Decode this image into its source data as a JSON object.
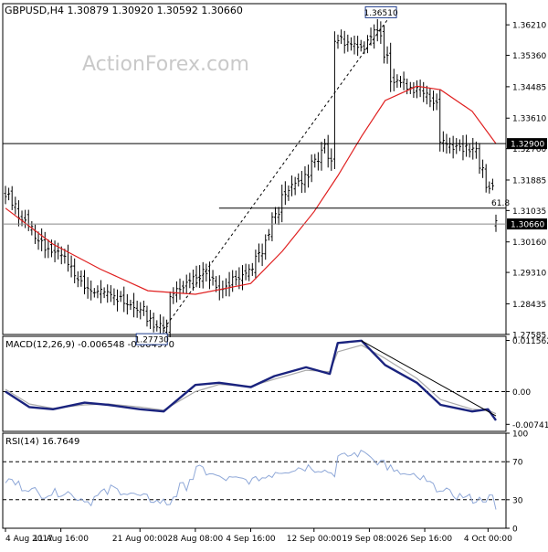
{
  "chart_data": [
    {
      "panel": "price",
      "type": "ohlc",
      "header": {
        "symbol_label": "GBPUSD,H4",
        "open": "1.30879",
        "high": "1.30920",
        "low": "1.30592",
        "close": "1.30660"
      },
      "watermark": "ActionForex.com",
      "ylim": [
        1.2758,
        1.368
      ],
      "y_ticks": [
        "1.36210",
        "1.35360",
        "1.34485",
        "1.33610",
        "1.32760",
        "1.31885",
        "1.31035",
        "1.30160",
        "1.29310",
        "1.28435",
        "1.27585"
      ],
      "y_tick_values": [
        1.3621,
        1.3536,
        1.34485,
        1.3361,
        1.3276,
        1.31885,
        1.31035,
        1.3016,
        1.2931,
        1.28435,
        1.27585
      ],
      "price_path": [
        {
          "date": "2017-08-04",
          "value": 1.315
        },
        {
          "date": "2017-08-07",
          "value": 1.305
        },
        {
          "date": "2017-08-09",
          "value": 1.3
        },
        {
          "date": "2017-08-11",
          "value": 1.2985
        },
        {
          "date": "2017-08-14",
          "value": 1.288
        },
        {
          "date": "2017-08-16",
          "value": 1.2875
        },
        {
          "date": "2017-08-18",
          "value": 1.286
        },
        {
          "date": "2017-08-21",
          "value": 1.283
        },
        {
          "date": "2017-08-23",
          "value": 1.278
        },
        {
          "date": "2017-08-24",
          "value": 1.2773
        },
        {
          "date": "2017-08-25",
          "value": 1.287
        },
        {
          "date": "2017-08-29",
          "value": 1.293
        },
        {
          "date": "2017-08-31",
          "value": 1.289
        },
        {
          "date": "2017-09-04",
          "value": 1.294
        },
        {
          "date": "2017-09-06",
          "value": 1.303
        },
        {
          "date": "2017-09-08",
          "value": 1.315
        },
        {
          "date": "2017-09-11",
          "value": 1.32
        },
        {
          "date": "2017-09-13",
          "value": 1.328
        },
        {
          "date": "2017-09-14",
          "value": 1.325
        },
        {
          "date": "2017-09-15",
          "value": 1.358
        },
        {
          "date": "2017-09-18",
          "value": 1.356
        },
        {
          "date": "2017-09-20",
          "value": 1.36
        },
        {
          "date": "2017-09-21",
          "value": 1.354
        },
        {
          "date": "2017-09-22",
          "value": 1.347
        },
        {
          "date": "2017-09-25",
          "value": 1.344
        },
        {
          "date": "2017-09-27",
          "value": 1.341
        },
        {
          "date": "2017-09-28",
          "value": 1.33
        },
        {
          "date": "2017-09-29",
          "value": 1.329
        },
        {
          "date": "2017-10-02",
          "value": 1.327
        },
        {
          "date": "2017-10-04",
          "value": 1.317
        },
        {
          "date": "2017-10-05",
          "value": 1.3066
        }
      ],
      "ma_line": [
        {
          "date": "2017-08-04",
          "value": 1.311
        },
        {
          "date": "2017-08-10",
          "value": 1.301
        },
        {
          "date": "2017-08-16",
          "value": 1.294
        },
        {
          "date": "2017-08-22",
          "value": 1.288
        },
        {
          "date": "2017-08-28",
          "value": 1.287
        },
        {
          "date": "2017-09-04",
          "value": 1.29
        },
        {
          "date": "2017-09-08",
          "value": 1.299
        },
        {
          "date": "2017-09-12",
          "value": 1.31
        },
        {
          "date": "2017-09-15",
          "value": 1.32
        },
        {
          "date": "2017-09-18",
          "value": 1.331
        },
        {
          "date": "2017-09-21",
          "value": 1.341
        },
        {
          "date": "2017-09-25",
          "value": 1.345
        },
        {
          "date": "2017-09-28",
          "value": 1.344
        },
        {
          "date": "2017-10-02",
          "value": 1.338
        },
        {
          "date": "2017-10-05",
          "value": 1.329
        }
      ],
      "colors": {
        "price": "#000000",
        "ma": "#e02020",
        "grid": "#000000",
        "label_box": "#1e3c8c"
      },
      "annotations": {
        "high_label": {
          "text": "1.36510",
          "date": "2017-09-20",
          "value": 1.3651
        },
        "low_label": {
          "text": "1.27730",
          "date": "2017-08-24",
          "value": 1.2773
        },
        "resistance_label": "1.32900",
        "resistance_value": 1.329,
        "current_label": "1.30660",
        "current_value": 1.3066,
        "fib_level_value": 1.311,
        "fib_label": "61.8",
        "fib_start_date": "2017-08-31",
        "trend_line": [
          {
            "date": "2017-08-24",
            "value": 1.2773
          },
          {
            "date": "2017-09-20",
            "value": 1.3651
          }
        ]
      }
    },
    {
      "panel": "macd",
      "type": "line",
      "header": "MACD(12,26,9) -0.006548 -0.004970",
      "ylim": [
        -0.009,
        0.0125
      ],
      "y_ticks": [
        "0.011562",
        "0.00",
        "-0.00741"
      ],
      "y_tick_values": [
        0.011562,
        0.0,
        -0.00741
      ],
      "zero_value": 0.0,
      "series": [
        {
          "color": "#1a237e",
          "points": [
            {
              "date": "2017-08-04",
              "value": 0.0
            },
            {
              "date": "2017-08-07",
              "value": -0.0035
            },
            {
              "date": "2017-08-10",
              "value": -0.004
            },
            {
              "date": "2017-08-14",
              "value": -0.0025
            },
            {
              "date": "2017-08-17",
              "value": -0.003
            },
            {
              "date": "2017-08-21",
              "value": -0.004
            },
            {
              "date": "2017-08-24",
              "value": -0.0045
            },
            {
              "date": "2017-08-28",
              "value": 0.0015
            },
            {
              "date": "2017-08-31",
              "value": 0.002
            },
            {
              "date": "2017-09-04",
              "value": 0.001
            },
            {
              "date": "2017-09-07",
              "value": 0.0035
            },
            {
              "date": "2017-09-11",
              "value": 0.0055
            },
            {
              "date": "2017-09-14",
              "value": 0.004
            },
            {
              "date": "2017-09-15",
              "value": 0.011
            },
            {
              "date": "2017-09-18",
              "value": 0.0115
            },
            {
              "date": "2017-09-21",
              "value": 0.006
            },
            {
              "date": "2017-09-25",
              "value": 0.002
            },
            {
              "date": "2017-09-28",
              "value": -0.003
            },
            {
              "date": "2017-10-02",
              "value": -0.0045
            },
            {
              "date": "2017-10-04",
              "value": -0.004
            },
            {
              "date": "2017-10-05",
              "value": -0.0065
            }
          ]
        },
        {
          "color": "#aaaaaa",
          "points": [
            {
              "date": "2017-08-04",
              "value": 0.0005
            },
            {
              "date": "2017-08-07",
              "value": -0.0028
            },
            {
              "date": "2017-08-10",
              "value": -0.0038
            },
            {
              "date": "2017-08-14",
              "value": -0.003
            },
            {
              "date": "2017-08-17",
              "value": -0.0028
            },
            {
              "date": "2017-08-21",
              "value": -0.0035
            },
            {
              "date": "2017-08-24",
              "value": -0.0042
            },
            {
              "date": "2017-08-28",
              "value": 0.0
            },
            {
              "date": "2017-08-31",
              "value": 0.0016
            },
            {
              "date": "2017-09-04",
              "value": 0.0012
            },
            {
              "date": "2017-09-07",
              "value": 0.0028
            },
            {
              "date": "2017-09-11",
              "value": 0.0048
            },
            {
              "date": "2017-09-14",
              "value": 0.0045
            },
            {
              "date": "2017-09-15",
              "value": 0.009
            },
            {
              "date": "2017-09-18",
              "value": 0.0105
            },
            {
              "date": "2017-09-21",
              "value": 0.0075
            },
            {
              "date": "2017-09-25",
              "value": 0.003
            },
            {
              "date": "2017-09-28",
              "value": -0.0018
            },
            {
              "date": "2017-10-02",
              "value": -0.004
            },
            {
              "date": "2017-10-04",
              "value": -0.0042
            },
            {
              "date": "2017-10-05",
              "value": -0.005
            }
          ]
        }
      ],
      "trend_line": [
        {
          "date": "2017-09-18",
          "value": 0.0115
        },
        {
          "date": "2017-10-05",
          "value": -0.0055
        }
      ]
    },
    {
      "panel": "rsi",
      "type": "line",
      "header": "RSI(14) 16.7649",
      "ylim": [
        0,
        100
      ],
      "y_ticks": [
        "100",
        "70",
        "30",
        "0"
      ],
      "y_tick_values": [
        100,
        70,
        30,
        0
      ],
      "levels": [
        70,
        30
      ],
      "series": [
        {
          "color": "#8fa8d8",
          "points": [
            {
              "date": "2017-08-04",
              "value": 50
            },
            {
              "date": "2017-08-08",
              "value": 36
            },
            {
              "date": "2017-08-11",
              "value": 38
            },
            {
              "date": "2017-08-14",
              "value": 28
            },
            {
              "date": "2017-08-17",
              "value": 42
            },
            {
              "date": "2017-08-21",
              "value": 32
            },
            {
              "date": "2017-08-24",
              "value": 26
            },
            {
              "date": "2017-08-28",
              "value": 62
            },
            {
              "date": "2017-08-31",
              "value": 52
            },
            {
              "date": "2017-09-04",
              "value": 50
            },
            {
              "date": "2017-09-07",
              "value": 60
            },
            {
              "date": "2017-09-11",
              "value": 65
            },
            {
              "date": "2017-09-14",
              "value": 58
            },
            {
              "date": "2017-09-15",
              "value": 75
            },
            {
              "date": "2017-09-18",
              "value": 80
            },
            {
              "date": "2017-09-20",
              "value": 70
            },
            {
              "date": "2017-09-22",
              "value": 58
            },
            {
              "date": "2017-09-25",
              "value": 52
            },
            {
              "date": "2017-09-28",
              "value": 38
            },
            {
              "date": "2017-10-02",
              "value": 30
            },
            {
              "date": "2017-10-04",
              "value": 32
            },
            {
              "date": "2017-10-05",
              "value": 17
            }
          ]
        }
      ]
    }
  ],
  "x_axis": {
    "start_date": "2017-08-04",
    "end_date": "2017-10-05",
    "ticks": [
      {
        "label": "4 Aug 2017",
        "date": "2017-08-04"
      },
      {
        "label": "11 Aug 16:00",
        "date": "2017-08-11"
      },
      {
        "label": "21 Aug 00:00",
        "date": "2017-08-21"
      },
      {
        "label": "28 Aug 08:00",
        "date": "2017-08-28"
      },
      {
        "label": "4 Sep 16:00",
        "date": "2017-09-04"
      },
      {
        "label": "12 Sep 00:00",
        "date": "2017-09-12"
      },
      {
        "label": "19 Sep 08:00",
        "date": "2017-09-19"
      },
      {
        "label": "26 Sep 16:00",
        "date": "2017-09-26"
      },
      {
        "label": "4 Oct 00:00",
        "date": "2017-10-04"
      }
    ]
  }
}
